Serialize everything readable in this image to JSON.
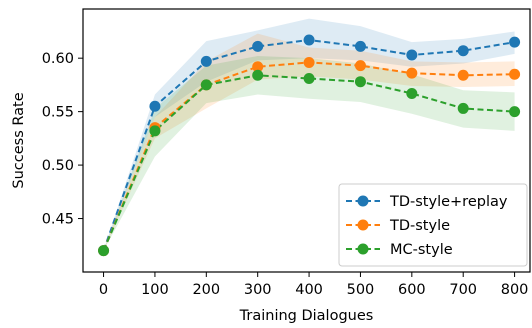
{
  "chart_data": {
    "type": "line",
    "title": "",
    "xlabel": "Training Dialogues",
    "ylabel": "Success Rate",
    "x": [
      0,
      100,
      200,
      300,
      400,
      500,
      600,
      700,
      800
    ],
    "xlim": [
      -40,
      830
    ],
    "ylim": [
      0.4,
      0.646
    ],
    "xticks": [
      0,
      100,
      200,
      300,
      400,
      500,
      600,
      700,
      800
    ],
    "yticks": [
      0.45,
      0.5,
      0.55,
      0.6
    ],
    "ytick_labels": [
      "0.45",
      "0.50",
      "0.55",
      "0.60"
    ],
    "grid": false,
    "legend_position": "lower-right",
    "series": [
      {
        "name": "TD-style+replay",
        "color": "#1f77b4",
        "values": [
          0.42,
          0.555,
          0.597,
          0.611,
          0.617,
          0.611,
          0.603,
          0.607,
          0.615
        ],
        "lower": [
          0.42,
          0.545,
          0.578,
          0.598,
          0.6,
          0.598,
          0.592,
          0.595,
          0.604
        ],
        "upper": [
          0.42,
          0.566,
          0.616,
          0.626,
          0.637,
          0.63,
          0.615,
          0.618,
          0.625
        ]
      },
      {
        "name": "TD-style",
        "color": "#ff7f0e",
        "values": [
          0.42,
          0.535,
          0.575,
          0.592,
          0.596,
          0.593,
          0.586,
          0.584,
          0.585
        ],
        "lower": [
          0.42,
          0.525,
          0.553,
          0.58,
          0.583,
          0.58,
          0.574,
          0.573,
          0.574
        ],
        "upper": [
          0.42,
          0.545,
          0.597,
          0.623,
          0.61,
          0.607,
          0.597,
          0.596,
          0.597
        ]
      },
      {
        "name": "MC-style",
        "color": "#2ca02c",
        "values": [
          0.42,
          0.532,
          0.575,
          0.584,
          0.581,
          0.578,
          0.567,
          0.553,
          0.55
        ],
        "lower": [
          0.42,
          0.508,
          0.558,
          0.566,
          0.562,
          0.559,
          0.548,
          0.535,
          0.532
        ],
        "upper": [
          0.42,
          0.553,
          0.593,
          0.602,
          0.6,
          0.595,
          0.585,
          0.57,
          0.568
        ]
      }
    ]
  }
}
